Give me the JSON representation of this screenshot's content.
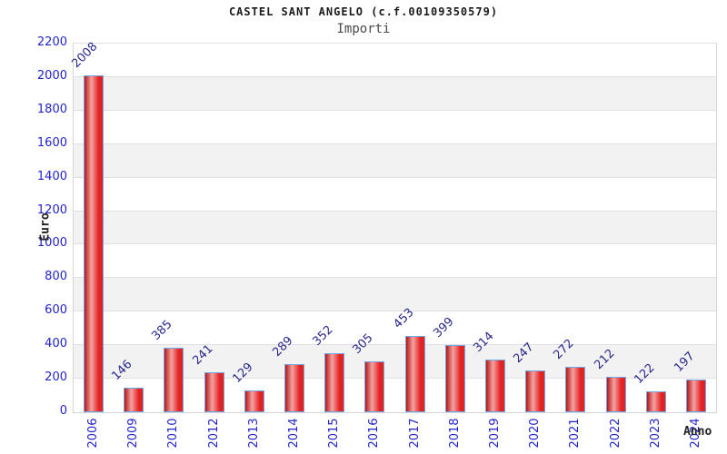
{
  "header": {
    "title": "CASTEL SANT ANGELO (c.f.00109350579)",
    "subtitle": "Importi"
  },
  "chart_data": {
    "type": "bar",
    "title": "CASTEL SANT ANGELO (c.f.00109350579)",
    "subtitle": "Importi",
    "xlabel": "Anno",
    "ylabel": "Euro",
    "categories": [
      "2006",
      "2009",
      "2010",
      "2012",
      "2013",
      "2014",
      "2015",
      "2016",
      "2017",
      "2018",
      "2019",
      "2020",
      "2021",
      "2022",
      "2023",
      "2024"
    ],
    "values": [
      2008,
      146,
      385,
      241,
      129,
      289,
      352,
      305,
      453,
      399,
      314,
      247,
      272,
      212,
      122,
      197
    ],
    "ylim": [
      0,
      2200
    ],
    "ytick_step": 200,
    "grid": "horizontal-bands",
    "legend": "none",
    "bar_value_labels_rotation_deg": 45,
    "xtick_rotation_deg": 90
  },
  "colors": {
    "bar_fill_dark": "#b51616",
    "bar_fill_light": "#f5a3a3",
    "bar_fill_main": "#e32222",
    "bar_border": "#6fa8e8",
    "axis_tick_text": "#2323cc",
    "value_label_text": "#28288e",
    "title_text": "#1a1a1a",
    "subtitle_text": "#4a4a4a",
    "axis_name_text": "#222222",
    "band_gray": "#f2f2f2",
    "band_white": "#ffffff",
    "grid_line": "#e0e0e0",
    "frame_border": "#d6d6d6",
    "background": "#ffffff"
  }
}
